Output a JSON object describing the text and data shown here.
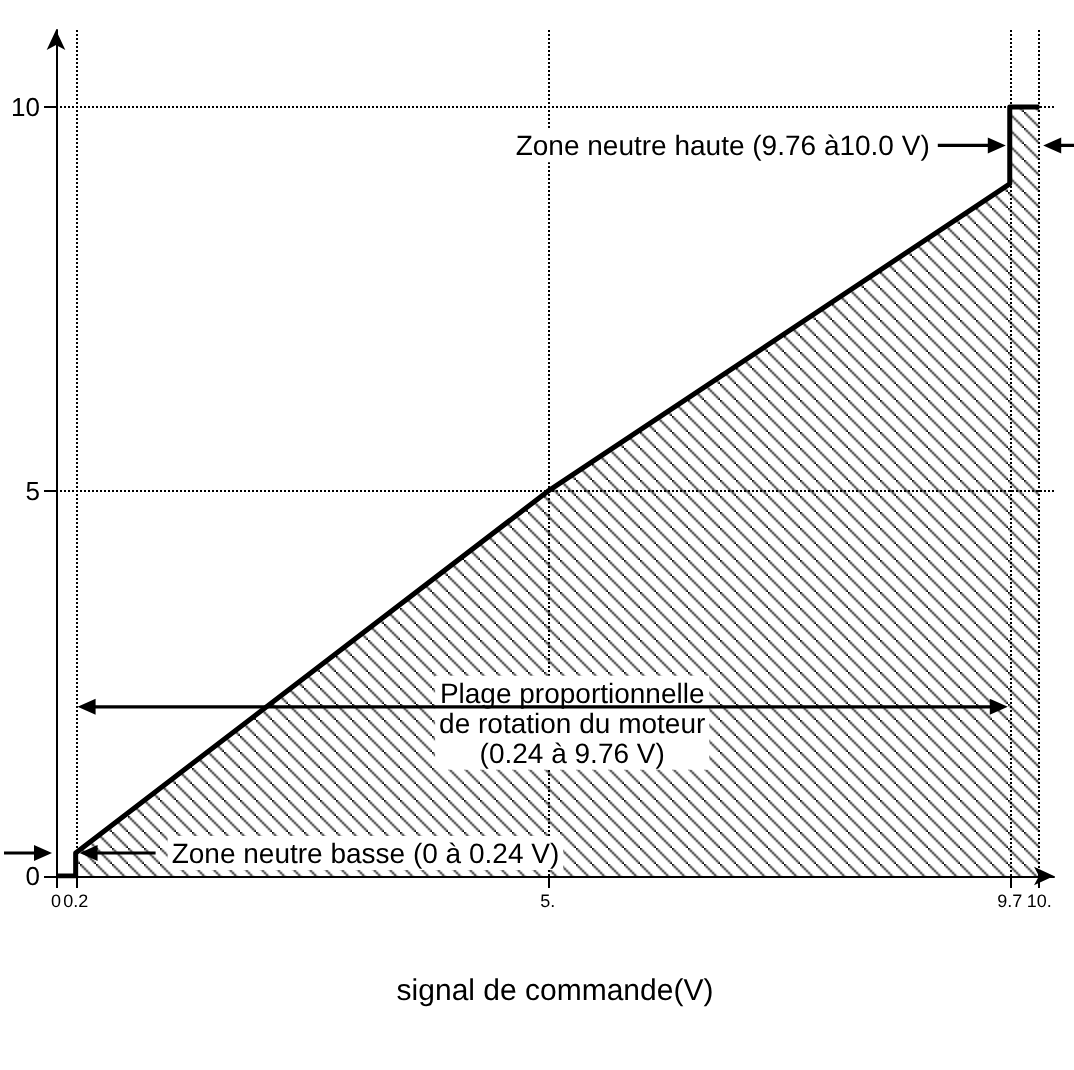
{
  "chart_data": {
    "type": "area",
    "xlabel": "signal de commande(V)",
    "x": [
      0,
      0.2,
      0.2,
      5,
      9.7,
      9.7,
      10
    ],
    "series": [
      {
        "color": "#000000",
        "values": [
          0,
          0,
          0.3,
          5,
          9,
          10,
          10
        ]
      }
    ],
    "xlim": [
      0,
      10.15
    ],
    "ylim": [
      0,
      11
    ],
    "xticks": [
      0,
      0.2,
      {
        "value": 5,
        "label": "5."
      },
      9.7,
      {
        "value": 10,
        "label": "10."
      }
    ],
    "yticks": [
      0,
      5,
      10
    ],
    "ref_lines": [
      {
        "axis": "x",
        "value": 0.2,
        "line_style": "dotted"
      },
      {
        "axis": "x",
        "value": 5,
        "line_style": "dotted"
      },
      {
        "axis": "x",
        "value": 9.7,
        "line_style": "dotted"
      },
      {
        "axis": "x",
        "value": 10,
        "line_style": "dotted"
      },
      {
        "axis": "y",
        "value": 5,
        "line_style": "dotted"
      },
      {
        "axis": "y",
        "value": 10,
        "line_style": "dotted"
      }
    ],
    "annotations": [
      "Zone neutre haute (9.76 à10.0 V)",
      "Plage proportionnelle\nde rotation du moteur\n(0.24 à 9.76 V)",
      "Zone neutre basse (0 à 0.24 V)"
    ],
    "grid": false,
    "marker": "none",
    "line_style": "solid"
  }
}
